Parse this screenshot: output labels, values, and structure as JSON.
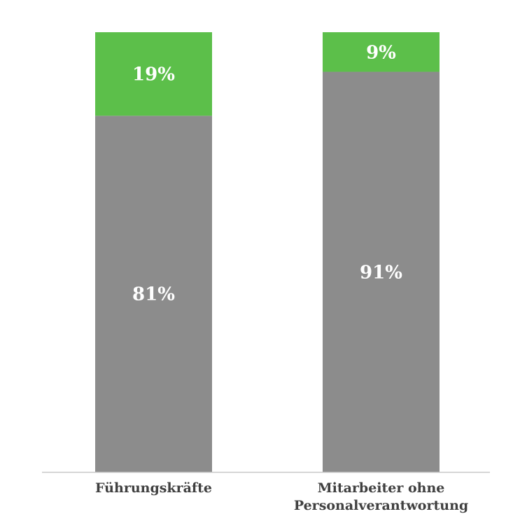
{
  "chart_data": {
    "type": "bar",
    "stacked": true,
    "percent_stacked": true,
    "categories": [
      [
        "Führungskräfte"
      ],
      [
        "Mitarbeiter ohne",
        "Personalverantwortung"
      ]
    ],
    "series": [
      {
        "values": [
          81,
          91
        ],
        "labels": [
          "81%",
          "91%"
        ],
        "color": "#8c8c8c"
      },
      {
        "values": [
          19,
          9
        ],
        "labels": [
          "19%",
          "9%"
        ],
        "color": "#5cbf4a"
      }
    ],
    "ylim": [
      0,
      100
    ],
    "grid": false,
    "title": "",
    "xlabel": "",
    "ylabel": ""
  }
}
